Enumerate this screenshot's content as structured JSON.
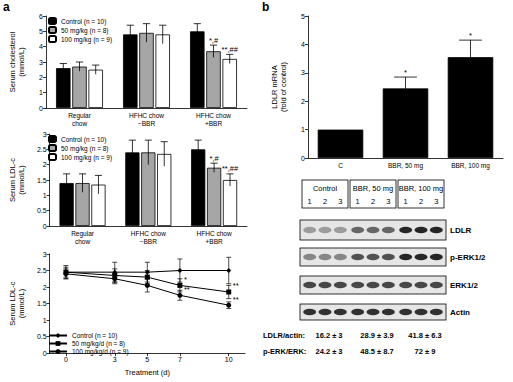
{
  "panel_labels": [
    "a",
    "b"
  ],
  "chart_data": [
    {
      "type": "bar",
      "ylabel": "Serum cholesterol\n(mmol/L)",
      "categories": [
        "Regular\nchow",
        "HFHC chow\n−BBR",
        "HFHC chow\n+BBR"
      ],
      "series": [
        {
          "name": "Control (n = 10)",
          "color": "#000000",
          "values": [
            2.6,
            4.8,
            5.0
          ],
          "errors": [
            0.3,
            0.6,
            0.5
          ]
        },
        {
          "name": "50 mg/kg (n = 8)",
          "color": "#a6a6a6",
          "values": [
            2.7,
            4.9,
            3.7
          ],
          "errors": [
            0.3,
            0.6,
            0.4
          ],
          "annotations": [
            null,
            null,
            "*,#"
          ]
        },
        {
          "name": "100 mg/kg (n = 9)",
          "color": "#ffffff",
          "values": [
            2.5,
            4.8,
            3.2
          ],
          "errors": [
            0.3,
            0.6,
            0.3
          ],
          "annotations": [
            null,
            null,
            "**,##"
          ]
        }
      ],
      "ylim": [
        0,
        6
      ],
      "yticks": [
        0,
        1,
        2,
        3,
        4,
        5,
        6
      ],
      "legend": "upper left",
      "grid": false
    },
    {
      "type": "bar",
      "ylabel": "Serum LDL-c\n(mmol/L)",
      "categories": [
        "Regular\nchow",
        "HFHC chow\n−BBR",
        "HFHC chow\n+BBR"
      ],
      "series": [
        {
          "name": "Control (n = 10)",
          "color": "#000000",
          "values": [
            1.4,
            2.4,
            2.5
          ],
          "errors": [
            0.3,
            0.4,
            0.3
          ]
        },
        {
          "name": "50 mg/kg (n = 8)",
          "color": "#a6a6a6",
          "values": [
            1.4,
            2.4,
            1.9
          ],
          "errors": [
            0.3,
            0.4,
            0.15
          ],
          "annotations": [
            null,
            null,
            "*,#"
          ]
        },
        {
          "name": "100 mg/kg (n = 9)",
          "color": "#ffffff",
          "values": [
            1.35,
            2.35,
            1.5
          ],
          "errors": [
            0.3,
            0.4,
            0.2
          ],
          "annotations": [
            null,
            null,
            "**,##"
          ]
        }
      ],
      "ylim": [
        0,
        3
      ],
      "yticks": [
        0,
        0.5,
        1,
        1.5,
        2,
        2.5,
        3
      ],
      "legend": "upper left",
      "grid": false
    },
    {
      "type": "line",
      "xlabel": "Treatment (d)",
      "ylabel": "Serum LDL-c\n(mmol/L)",
      "x": [
        0,
        3,
        5,
        7,
        10
      ],
      "series": [
        {
          "name": "Control (n = 10)",
          "color": "#000000",
          "marker": "diamond",
          "values": [
            2.45,
            2.45,
            2.45,
            2.5,
            2.5
          ],
          "errors": [
            0.2,
            0.3,
            0.3,
            0.35,
            0.4
          ]
        },
        {
          "name": "50 mg/kg/d (n = 8)",
          "color": "#000000",
          "marker": "square",
          "values": [
            2.45,
            2.35,
            2.3,
            2.05,
            1.85
          ],
          "errors": [
            0.15,
            0.2,
            0.2,
            0.2,
            0.2
          ],
          "annotations": [
            null,
            null,
            null,
            "*",
            "**"
          ]
        },
        {
          "name": "100 mg/kg/d (n = 9)",
          "color": "#000000",
          "marker": "circle",
          "values": [
            2.4,
            2.25,
            2.05,
            1.75,
            1.45
          ],
          "errors": [
            0.15,
            0.15,
            0.2,
            0.15,
            0.1
          ],
          "annotations": [
            null,
            null,
            null,
            "**",
            "**"
          ]
        }
      ],
      "xlim": [
        -1,
        11
      ],
      "xticks": [
        0,
        3,
        5,
        7,
        10
      ],
      "ylim": [
        0,
        3
      ],
      "yticks": [
        0,
        0.5,
        1,
        1.5,
        2,
        2.5,
        3
      ],
      "legend": "lower left",
      "grid": false
    },
    {
      "type": "bar",
      "ylabel": "LDLR mRNA\n(fold of control)",
      "categories": [
        "C",
        "BBR, 50 mg",
        "BBR, 100 mg"
      ],
      "values": [
        1,
        2.45,
        3.55
      ],
      "errors": [
        0,
        0.4,
        0.6
      ],
      "annotations": [
        null,
        "*",
        "*"
      ],
      "color": "#000000",
      "ylim": [
        0,
        5
      ],
      "yticks": [
        0,
        1,
        2,
        3,
        4,
        5
      ],
      "grid": false
    }
  ],
  "blot": {
    "groups": [
      {
        "label": "Control",
        "lanes": [
          "1",
          "2",
          "3"
        ]
      },
      {
        "label": "BBR, 50 mg",
        "lanes": [
          "1",
          "2",
          "3"
        ]
      },
      {
        "label": "BBR, 100 mg",
        "lanes": [
          "1",
          "2",
          "3"
        ]
      }
    ],
    "rows": [
      "LDLR",
      "p-ERK1/2",
      "ERK1/2",
      "Actin"
    ],
    "quantification": [
      {
        "label": "LDLR/actin:",
        "values": [
          "16.2 ± 3",
          "28.9 ± 3.9",
          "41.8 ± 6.3"
        ]
      },
      {
        "label": "p-ERK/ERK:",
        "values": [
          "24.2 ± 3",
          "48.5 ± 8.7",
          "72 ± 9"
        ]
      }
    ]
  }
}
